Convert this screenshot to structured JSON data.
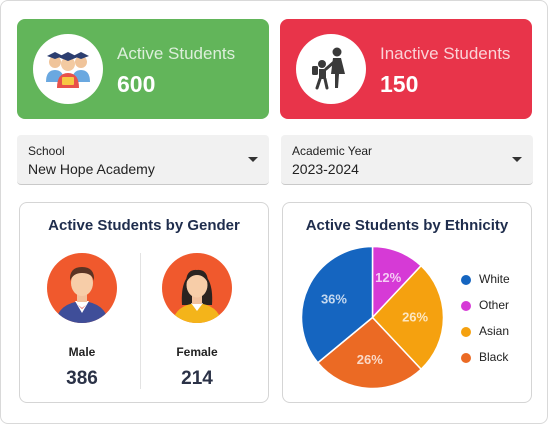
{
  "cards": {
    "active": {
      "label": "Active Students",
      "value": "600",
      "color": "#62b55a",
      "icon": "students-group-icon"
    },
    "inactive": {
      "label": "Inactive Students",
      "value": "150",
      "color": "#e8344a",
      "icon": "dropout-icon"
    }
  },
  "filters": {
    "school": {
      "label": "School",
      "value": "New Hope Academy"
    },
    "year": {
      "label": "Academic Year",
      "value": "2023-2024"
    }
  },
  "gender_panel": {
    "title": "Active Students by Gender",
    "male": {
      "label": "Male",
      "value": "386",
      "icon": "male-avatar-icon"
    },
    "female": {
      "label": "Female",
      "value": "214",
      "icon": "female-avatar-icon"
    }
  },
  "ethnicity_panel": {
    "title": "Active Students by Ethnicity"
  },
  "chart_data": {
    "type": "pie",
    "title": "Active Students by Ethnicity",
    "slices": [
      {
        "name": "White",
        "value": 36,
        "label": "36%",
        "color": "#1565c0"
      },
      {
        "name": "Other",
        "value": 12,
        "label": "12%",
        "color": "#d63ad6"
      },
      {
        "name": "Asian",
        "value": 26,
        "label": "26%",
        "color": "#f5a10f"
      },
      {
        "name": "Black",
        "value": 26,
        "label": "26%",
        "color": "#eb6a24"
      }
    ],
    "draw_order": [
      "Other",
      "Asian",
      "Black",
      "White"
    ],
    "legend_placement": "right"
  }
}
